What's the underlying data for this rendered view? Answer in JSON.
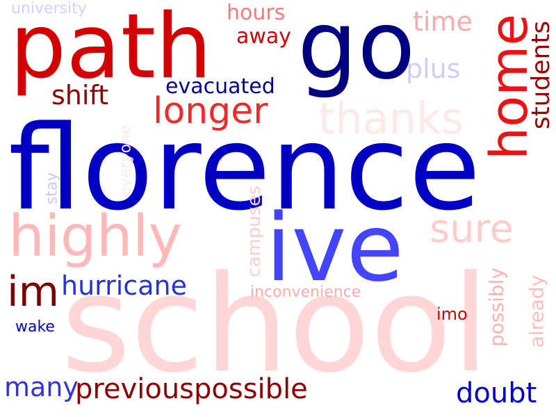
{
  "words": [
    {
      "text": "school",
      "color": "#ffd6d6"
    },
    {
      "text": "florence",
      "color": "#0000c4"
    },
    {
      "text": "path",
      "color": "#d40000"
    },
    {
      "text": "go",
      "color": "#000080"
    },
    {
      "text": "ive",
      "color": "#4444ff"
    },
    {
      "text": "highly",
      "color": "#ffb8b8"
    },
    {
      "text": "home",
      "color": "#ee1111"
    },
    {
      "text": "longer",
      "color": "#ee2a2a"
    },
    {
      "text": "thanks",
      "color": "#ffe8e8"
    },
    {
      "text": "sure",
      "color": "#ffcccc"
    },
    {
      "text": "im",
      "color": "#7a0000"
    },
    {
      "text": "hurricane",
      "color": "#2233dd"
    },
    {
      "text": "shift",
      "color": "#8b0000"
    },
    {
      "text": "evacuated",
      "color": "#00008b"
    },
    {
      "text": "hours",
      "color": "#ff7777"
    },
    {
      "text": "away",
      "color": "#cc0000"
    },
    {
      "text": "time",
      "color": "#ffaaaa"
    },
    {
      "text": "plus",
      "color": "#ccccff"
    },
    {
      "text": "students",
      "color": "#990000"
    },
    {
      "text": "university",
      "color": "#d0d0ff"
    },
    {
      "text": "everyone",
      "color": "#ffeaea"
    },
    {
      "text": "stay",
      "color": "#c8c8ff"
    },
    {
      "text": "campuses",
      "color": "#ffcccc"
    },
    {
      "text": "inconvenience",
      "color": "#ffaaaa"
    },
    {
      "text": "possibly",
      "color": "#ffb0b0"
    },
    {
      "text": "already",
      "color": "#ffbcbc"
    },
    {
      "text": "imo",
      "color": "#cc0000"
    },
    {
      "text": "wake",
      "color": "#0000cc"
    },
    {
      "text": "many",
      "color": "#3333dd"
    },
    {
      "text": "previouspossible",
      "color": "#8b0000"
    },
    {
      "text": "doubt",
      "color": "#0000cc"
    }
  ]
}
